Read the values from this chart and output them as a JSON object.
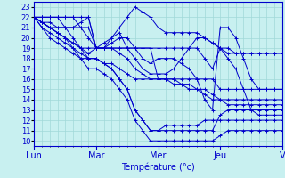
{
  "xlabel": "Température (°c)",
  "background_color": "#c8f0f0",
  "grid_color": "#a0d8d8",
  "line_color": "#0000cc",
  "ylim": [
    9.5,
    23.5
  ],
  "yticks": [
    10,
    11,
    12,
    13,
    14,
    15,
    16,
    17,
    18,
    19,
    20,
    21,
    22,
    23
  ],
  "day_positions": [
    0,
    8,
    16,
    24,
    32
  ],
  "day_labels": [
    "Lun",
    "Mar",
    "Mer",
    "Jeu",
    "V"
  ],
  "n_points": 33,
  "series": [
    [
      22,
      22,
      22,
      22,
      22,
      22,
      22,
      22,
      19,
      19,
      19,
      19,
      19,
      19,
      19,
      19,
      16,
      16,
      16,
      16,
      16,
      16,
      16,
      16,
      15,
      15,
      15,
      15,
      15,
      15,
      15,
      15,
      15
    ],
    [
      22,
      21.5,
      21,
      20.5,
      20,
      19,
      18,
      17,
      17,
      16.5,
      16,
      15,
      14,
      12,
      11,
      10,
      10,
      10,
      10,
      10,
      10,
      10,
      10,
      10,
      10.5,
      11,
      11,
      11,
      11,
      11,
      11,
      11,
      11
    ],
    [
      22,
      21.5,
      21,
      20.5,
      20,
      19.5,
      19,
      18,
      18,
      17.5,
      17,
      16,
      15,
      13,
      12,
      11,
      11,
      11,
      11,
      11,
      11,
      11,
      11,
      11,
      12.5,
      13,
      13,
      13,
      13,
      13,
      13,
      13,
      13
    ],
    [
      22,
      21,
      20.5,
      20,
      19.5,
      19,
      18.5,
      18,
      18,
      17.5,
      17,
      16,
      15,
      13,
      12,
      11,
      11,
      11.5,
      11.5,
      11.5,
      11.5,
      11.5,
      12,
      12,
      12,
      12,
      12,
      12,
      12,
      12,
      12,
      12,
      12
    ],
    [
      22,
      21,
      20,
      19.5,
      19,
      18.5,
      18,
      18,
      18,
      17.5,
      17.5,
      17,
      16.5,
      16,
      16,
      16,
      16,
      16,
      16,
      15.5,
      15.5,
      15,
      15,
      14.5,
      14,
      13.5,
      13.5,
      13.5,
      13.5,
      13.5,
      13.5,
      13.5,
      13.5
    ],
    [
      22,
      22,
      22,
      22,
      22,
      22,
      21,
      20,
      19,
      19,
      20,
      21,
      22,
      23,
      22.5,
      22,
      21,
      20.5,
      20.5,
      20.5,
      20.5,
      20.5,
      20,
      19.5,
      19,
      18.5,
      18.5,
      18.5,
      18.5,
      18.5,
      18.5,
      18.5,
      18.5
    ],
    [
      22,
      22,
      22,
      22,
      21,
      20,
      19,
      19,
      19,
      19.5,
      20,
      20.5,
      19,
      18,
      17,
      16.5,
      16.5,
      16.5,
      17,
      18,
      19,
      20,
      20,
      19.5,
      19,
      18,
      17,
      15,
      13,
      12.5,
      12.5,
      12.5,
      12.5
    ],
    [
      22,
      21.5,
      21,
      20.5,
      20,
      19.5,
      19,
      18.5,
      19,
      19,
      19,
      18.5,
      18,
      17,
      16.5,
      16,
      16,
      16,
      15.5,
      15.5,
      15,
      15,
      14.5,
      14,
      14,
      14,
      14,
      14,
      14,
      14,
      14,
      14,
      14
    ],
    [
      22,
      21.5,
      21.5,
      21,
      21,
      21,
      21.5,
      22,
      19,
      19,
      19.5,
      20,
      20,
      19,
      18,
      17.5,
      18,
      18,
      18,
      17.5,
      17,
      16,
      14,
      13,
      21,
      21,
      20,
      18,
      16,
      15,
      15,
      15,
      15
    ],
    [
      22,
      21.5,
      21,
      21,
      21,
      21,
      21,
      21,
      19,
      19,
      19,
      19,
      19,
      19,
      19,
      19,
      19,
      19,
      19,
      19,
      19,
      19,
      18,
      17,
      19,
      19,
      18.5,
      18.5,
      18.5,
      18.5,
      18.5,
      18.5,
      18.5
    ]
  ]
}
